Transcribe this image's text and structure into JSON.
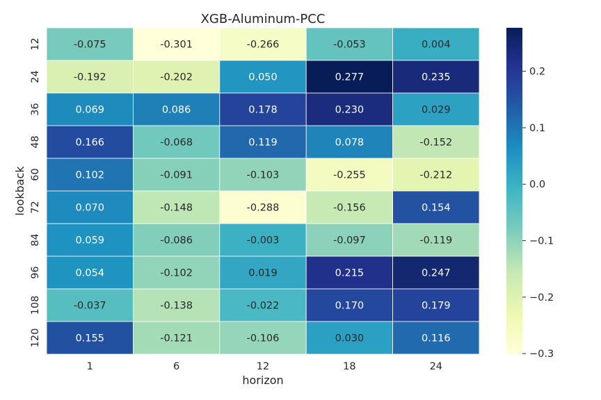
{
  "chart_data": {
    "type": "heatmap",
    "title": "XGB-Aluminum-PCC",
    "xlabel": "horizon",
    "ylabel": "lookback",
    "x_categories": [
      "1",
      "6",
      "12",
      "18",
      "24"
    ],
    "y_categories": [
      "12",
      "24",
      "36",
      "48",
      "60",
      "72",
      "84",
      "96",
      "108",
      "120"
    ],
    "values": [
      [
        -0.075,
        -0.301,
        -0.266,
        -0.053,
        0.004
      ],
      [
        -0.192,
        -0.202,
        0.05,
        0.277,
        0.235
      ],
      [
        0.069,
        0.086,
        0.178,
        0.23,
        0.029
      ],
      [
        0.166,
        -0.068,
        0.119,
        0.078,
        -0.152
      ],
      [
        0.102,
        -0.091,
        -0.103,
        -0.255,
        -0.212
      ],
      [
        0.07,
        -0.148,
        -0.288,
        -0.156,
        0.154
      ],
      [
        0.059,
        -0.086,
        -0.003,
        -0.097,
        -0.119
      ],
      [
        0.054,
        -0.102,
        0.019,
        0.215,
        0.247
      ],
      [
        -0.037,
        -0.138,
        -0.022,
        0.17,
        0.179
      ],
      [
        0.155,
        -0.121,
        -0.106,
        0.03,
        0.116
      ]
    ],
    "labels": [
      [
        "-0.075",
        "-0.301",
        "-0.266",
        "-0.053",
        "0.004"
      ],
      [
        "-0.192",
        "-0.202",
        "0.050",
        "0.277",
        "0.235"
      ],
      [
        "0.069",
        "0.086",
        "0.178",
        "0.230",
        "0.029"
      ],
      [
        "0.166",
        "-0.068",
        "0.119",
        "0.078",
        "-0.152"
      ],
      [
        "0.102",
        "-0.091",
        "-0.103",
        "-0.255",
        "-0.212"
      ],
      [
        "0.070",
        "-0.148",
        "-0.288",
        "-0.156",
        "0.154"
      ],
      [
        "0.059",
        "-0.086",
        "-0.003",
        "-0.097",
        "-0.119"
      ],
      [
        "0.054",
        "-0.102",
        "0.019",
        "0.215",
        "0.247"
      ],
      [
        "-0.037",
        "-0.138",
        "-0.022",
        "0.170",
        "0.179"
      ],
      [
        "0.155",
        "-0.121",
        "-0.106",
        "0.030",
        "0.116"
      ]
    ],
    "colormap": "YlGnBu",
    "colorbar": {
      "range": [
        -0.301,
        0.277
      ],
      "ticks": [
        0.2,
        0.1,
        0.0,
        -0.1,
        -0.2,
        -0.3
      ],
      "tick_labels": [
        "0.2",
        "0.1",
        "0.0",
        "−0.1",
        "−0.2",
        "−0.3"
      ]
    }
  }
}
